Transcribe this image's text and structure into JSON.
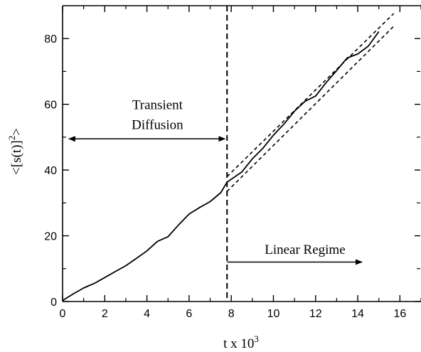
{
  "chart_data": {
    "type": "line",
    "xlabel": "t x 10",
    "xlabel_sup": "3",
    "ylabel": "<[s(t)]",
    "ylabel_sup": "2",
    "ylabel_tail": ">",
    "xlim": [
      0,
      17
    ],
    "ylim": [
      0,
      90
    ],
    "xticks": [
      0,
      2,
      4,
      6,
      8,
      10,
      12,
      14,
      16
    ],
    "yticks": [
      0,
      20,
      40,
      60,
      80
    ],
    "grid": false,
    "series": [
      {
        "style": "solid",
        "x": [
          0,
          0.5,
          1,
          1.5,
          2,
          2.5,
          3,
          3.5,
          4,
          4.5,
          5,
          5.5,
          6,
          6.5,
          7,
          7.5,
          7.8,
          8.5,
          9,
          9.5,
          10,
          10.5,
          11,
          11.5,
          12,
          12.5,
          13,
          13.5,
          14,
          14.5,
          15
        ],
        "y": [
          0.3,
          2.3,
          4.1,
          5.5,
          7.3,
          9.1,
          10.9,
          13.1,
          15.4,
          18.3,
          19.7,
          23.3,
          26.6,
          28.6,
          30.4,
          33.1,
          36.3,
          39.4,
          43.4,
          46.6,
          50.6,
          54.0,
          57.9,
          60.9,
          62.5,
          66.6,
          70.3,
          74.1,
          75.3,
          77.7,
          82.1
        ]
      },
      {
        "style": "dashed",
        "x": [
          7.8,
          15.7
        ],
        "y": [
          38.0,
          87.6
        ]
      },
      {
        "style": "dashed",
        "x": [
          7.8,
          15.7
        ],
        "y": [
          33.5,
          83.7
        ]
      }
    ],
    "vline": {
      "x": 7.8,
      "style": "dashed"
    },
    "annotations": [
      {
        "text": "Transient",
        "x": 4.5,
        "y": 58.5
      },
      {
        "text": "Diffusion",
        "x": 4.5,
        "y": 52.5
      },
      {
        "text": "Linear Regime",
        "x": 11.5,
        "y": 14.5
      }
    ],
    "arrows": [
      {
        "kind": "double",
        "x1": 0.3,
        "x2": 7.7,
        "y": 49.5
      },
      {
        "kind": "single",
        "x1": 7.8,
        "x2": 14.2,
        "y": 12
      }
    ]
  }
}
